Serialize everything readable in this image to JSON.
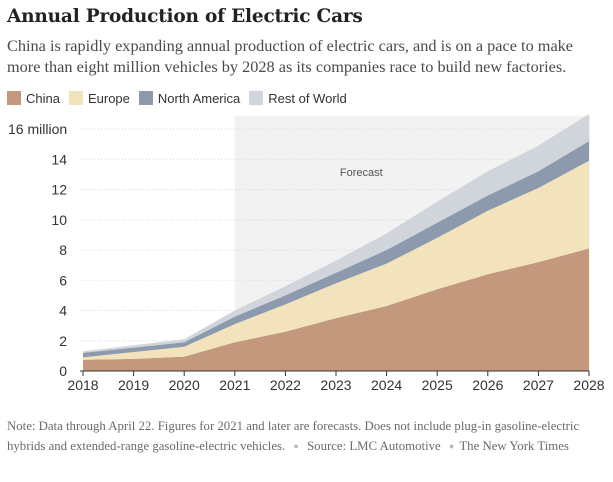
{
  "header": {
    "title": "Annual Production of Electric Cars",
    "subtitle": "China is rapidly expanding annual production of electric cars, and is on a pace to make more than eight million vehicles by 2028 as its companies race to build new factories."
  },
  "colors": {
    "China": "#c4987d",
    "Europe": "#f3e3bd",
    "North America": "#8d99ad",
    "Rest of World": "#cfd5da",
    "forecast_band": "#f2f2f2"
  },
  "footer": {
    "note": "Note: Data through April 22. Figures for 2021 and later are forecasts. Does not include plug-in gasoline-electric hybrids and extended-range gasoline-electric vehicles.",
    "source": "Source: LMC Automotive",
    "credit": "The New York Times"
  },
  "chart_data": {
    "type": "area",
    "stacked": true,
    "x": [
      2018,
      2019,
      2020,
      2021,
      2022,
      2023,
      2024,
      2025,
      2026,
      2027,
      2028
    ],
    "series": [
      {
        "name": "China",
        "values": [
          0.75,
          0.8,
          0.95,
          1.9,
          2.6,
          3.5,
          4.3,
          5.4,
          6.4,
          7.2,
          8.1
        ]
      },
      {
        "name": "Europe",
        "values": [
          0.15,
          0.45,
          0.65,
          1.2,
          1.8,
          2.3,
          2.8,
          3.4,
          4.2,
          4.9,
          5.8
        ]
      },
      {
        "name": "North America",
        "values": [
          0.3,
          0.3,
          0.3,
          0.5,
          0.6,
          0.7,
          0.9,
          1.0,
          1.0,
          1.1,
          1.3
        ]
      },
      {
        "name": "Rest of World",
        "values": [
          0.1,
          0.15,
          0.2,
          0.4,
          0.6,
          0.8,
          1.1,
          1.4,
          1.6,
          1.7,
          1.8
        ]
      }
    ],
    "x_ticks": [
      "2018",
      "2019",
      "2020",
      "2021",
      "2022",
      "2023",
      "2024",
      "2025",
      "2026",
      "2027",
      "2028"
    ],
    "y_ticks": [
      0,
      2,
      4,
      6,
      8,
      10,
      12,
      14,
      16
    ],
    "y_tick_labels": [
      "0",
      "2",
      "4",
      "6",
      "8",
      "10",
      "12",
      "14",
      "16 million"
    ],
    "ylim": [
      0,
      16
    ],
    "xlim": [
      2018,
      2028
    ],
    "annotations": [
      {
        "text": "Forecast",
        "x_start": 2021,
        "x_end": 2028
      }
    ],
    "legend": "top-left",
    "grid": true
  }
}
